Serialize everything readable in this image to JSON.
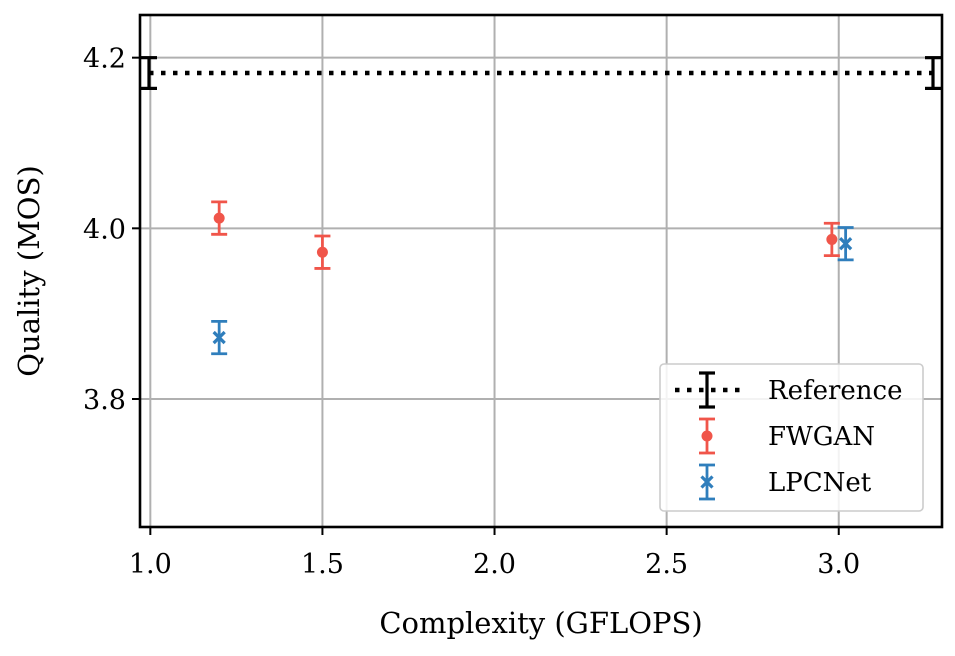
{
  "chart_data": {
    "type": "scatter",
    "title": "",
    "xlabel": "Complexity (GFLOPS)",
    "ylabel": "Quality (MOS)",
    "xlim": [
      0.97,
      3.3
    ],
    "ylim": [
      3.65,
      4.25
    ],
    "xticks": [
      1.0,
      1.5,
      2.0,
      2.5,
      3.0
    ],
    "xtick_labels": [
      "1.0",
      "1.5",
      "2.0",
      "2.5",
      "3.0"
    ],
    "yticks": [
      3.8,
      4.0,
      4.2
    ],
    "ytick_labels": [
      "3.8",
      "4.0",
      "4.2"
    ],
    "grid": true,
    "legend_position": "lower-right",
    "reference": {
      "name": "Reference",
      "value": 4.182,
      "err": 0.018,
      "x_range": [
        0.97,
        3.3
      ],
      "color": "#000000"
    },
    "series": [
      {
        "name": "FWGAN",
        "marker": "dot",
        "color": "#f0554a",
        "points": [
          {
            "x": 1.2,
            "y": 4.012,
            "err": 0.019
          },
          {
            "x": 1.5,
            "y": 3.972,
            "err": 0.019
          },
          {
            "x": 2.98,
            "y": 3.987,
            "err": 0.019
          }
        ]
      },
      {
        "name": "LPCNet",
        "marker": "x",
        "color": "#2f7ebc",
        "points": [
          {
            "x": 1.2,
            "y": 3.872,
            "err": 0.019
          },
          {
            "x": 3.02,
            "y": 3.982,
            "err": 0.019
          }
        ]
      }
    ]
  }
}
